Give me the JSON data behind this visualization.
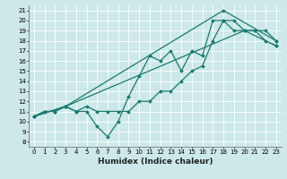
{
  "title": "",
  "xlabel": "Humidex (Indice chaleur)",
  "ylabel": "",
  "bg_color": "#cce8e8",
  "grid_color": "#ffffff",
  "line_color": "#1a7a6e",
  "marker": "D",
  "markersize": 2,
  "linewidth": 0.9,
  "xlim": [
    -0.5,
    23.5
  ],
  "ylim": [
    7.5,
    21.5
  ],
  "xticks": [
    0,
    1,
    2,
    3,
    4,
    5,
    6,
    7,
    8,
    9,
    10,
    11,
    12,
    13,
    14,
    15,
    16,
    17,
    18,
    19,
    20,
    21,
    22,
    23
  ],
  "yticks": [
    8,
    9,
    10,
    11,
    12,
    13,
    14,
    15,
    16,
    17,
    18,
    19,
    20,
    21
  ],
  "series": [
    {
      "x": [
        0,
        1,
        2,
        3,
        4,
        5,
        6,
        7,
        8,
        9,
        10,
        11,
        12,
        13,
        14,
        15,
        16,
        17,
        18,
        19,
        20,
        21,
        22,
        23
      ],
      "y": [
        10.5,
        11,
        11,
        11.5,
        11,
        11,
        9.5,
        8.5,
        10,
        12.5,
        14.5,
        16.5,
        16,
        17,
        15,
        17,
        16.5,
        20,
        20,
        19,
        19,
        19,
        18,
        17.5
      ]
    },
    {
      "x": [
        0,
        1,
        2,
        3,
        4,
        5,
        6,
        7,
        8,
        9,
        10,
        11,
        12,
        13,
        14,
        15,
        16,
        17,
        18,
        19,
        20,
        21,
        22,
        23
      ],
      "y": [
        10.5,
        11,
        11,
        11.5,
        11,
        11.5,
        11,
        11,
        11,
        11,
        12,
        12,
        13,
        13,
        14,
        15,
        15.5,
        18,
        20,
        20,
        19,
        19,
        19,
        18
      ]
    },
    {
      "x": [
        0,
        3,
        18,
        23
      ],
      "y": [
        10.5,
        11.5,
        21,
        18
      ]
    },
    {
      "x": [
        0,
        3,
        20,
        23
      ],
      "y": [
        10.5,
        11.5,
        19,
        17.5
      ]
    }
  ],
  "tick_fontsize": 5,
  "xlabel_fontsize": 6.5
}
